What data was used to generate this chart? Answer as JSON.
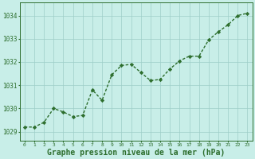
{
  "x": [
    0,
    1,
    2,
    3,
    4,
    5,
    6,
    7,
    8,
    9,
    10,
    11,
    12,
    13,
    14,
    15,
    16,
    17,
    18,
    19,
    20,
    21,
    22,
    23
  ],
  "y": [
    1029.2,
    1029.2,
    1029.4,
    1030.0,
    1029.85,
    1029.65,
    1029.7,
    1030.8,
    1030.35,
    1031.45,
    1031.85,
    1031.9,
    1031.55,
    1031.2,
    1031.25,
    1031.7,
    1032.05,
    1032.25,
    1032.25,
    1032.95,
    1033.3,
    1033.6,
    1034.0,
    1034.1
  ],
  "line_color": "#2d6e2d",
  "marker": "D",
  "marker_size": 2.2,
  "line_width": 1.0,
  "background_color": "#c8eee8",
  "grid_color": "#9ecec8",
  "axis_color": "#2d6e2d",
  "xlabel": "Graphe pression niveau de la mer (hPa)",
  "xlabel_fontsize": 7,
  "ylabel_ticks": [
    1029,
    1030,
    1031,
    1032,
    1033,
    1034
  ],
  "xlim": [
    -0.5,
    23.5
  ],
  "ylim": [
    1028.6,
    1034.55
  ],
  "xtick_labels": [
    "0",
    "1",
    "2",
    "3",
    "4",
    "5",
    "6",
    "7",
    "8",
    "9",
    "10",
    "11",
    "12",
    "13",
    "14",
    "15",
    "16",
    "17",
    "18",
    "19",
    "20",
    "21",
    "22",
    "23"
  ]
}
